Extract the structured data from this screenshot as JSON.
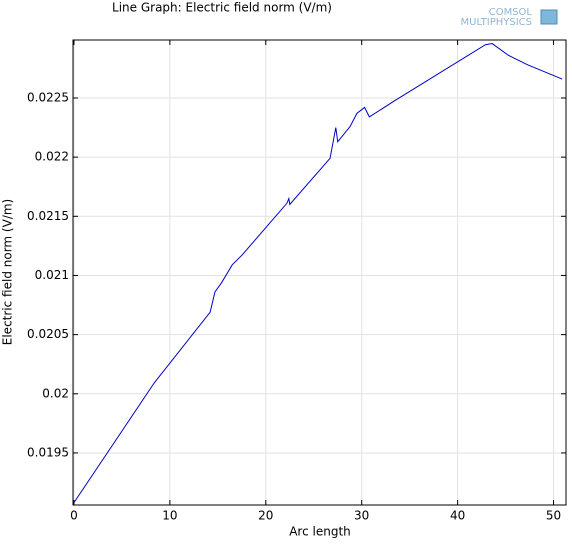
{
  "chart_data": {
    "type": "line",
    "title": "Line Graph: Electric field norm (V/m)",
    "logo": [
      "COMSOL",
      "MULTIPHYSICS"
    ],
    "xlabel": "Arc length",
    "ylabel": "Electric field norm (V/m)",
    "x": [
      0,
      8.35,
      14.2,
      14.7,
      15.4,
      16.5,
      17.5,
      22.2,
      22.4,
      22.5,
      26.7,
      27.3,
      27.5,
      28.8,
      29.5,
      30.3,
      30.8,
      33.5,
      42.9,
      43.6,
      45.3,
      47.3,
      50.9
    ],
    "series": [
      {
        "color": "#0000c8",
        "values": [
          0.01908,
          0.02009,
          0.02069,
          0.02086,
          0.02094,
          0.02109,
          0.02117,
          0.02161,
          0.02165,
          0.0216,
          0.02199,
          0.02225,
          0.02213,
          0.02226,
          0.02237,
          0.02242,
          0.02234,
          0.02248,
          0.02295,
          0.02296,
          0.02286,
          0.02278,
          0.02266
        ]
      }
    ],
    "xlim": [
      -0.1,
      51.3
    ],
    "ylim": [
      0.01906,
      0.02299
    ],
    "xticks": [
      0,
      10,
      20,
      30,
      40,
      50
    ],
    "yticks": [
      0.0195,
      0.02,
      0.0205,
      0.021,
      0.0215,
      0.022,
      0.0225
    ],
    "grid": true
  }
}
